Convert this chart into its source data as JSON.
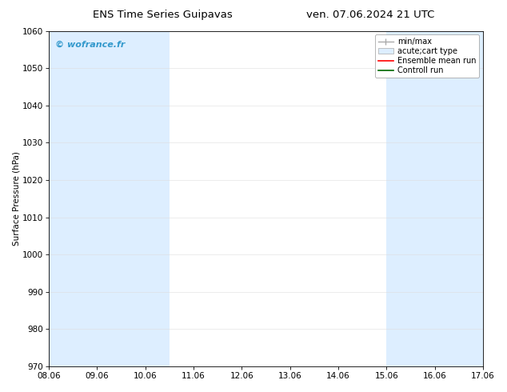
{
  "title_left": "ENS Time Series Guipavas",
  "title_right": "ven. 07.06.2024 21 UTC",
  "ylabel": "Surface Pressure (hPa)",
  "xlabel": "",
  "ylim": [
    970,
    1060
  ],
  "yticks": [
    970,
    980,
    990,
    1000,
    1010,
    1020,
    1030,
    1040,
    1050,
    1060
  ],
  "xtick_labels": [
    "08.06",
    "09.06",
    "10.06",
    "11.06",
    "12.06",
    "13.06",
    "14.06",
    "15.06",
    "16.06",
    "17.06"
  ],
  "xtick_positions": [
    0,
    1,
    2,
    3,
    4,
    5,
    6,
    7,
    8,
    9
  ],
  "xlim": [
    0,
    9
  ],
  "watermark": "© wofrance.fr",
  "watermark_color": "#3399cc",
  "background_color": "#ffffff",
  "plot_background": "#ffffff",
  "shaded_bands": [
    {
      "xmin": 0.0,
      "xmax": 0.5,
      "color": "#ddeeff"
    },
    {
      "xmin": 0.5,
      "xmax": 2.5,
      "color": "#ddeeff"
    },
    {
      "xmin": 7.0,
      "xmax": 9.0,
      "color": "#ddeeff"
    }
  ],
  "legend_entries": [
    {
      "label": "min/max",
      "color": "#aaaaaa",
      "type": "errorbar"
    },
    {
      "label": "acute;cart type",
      "color": "#aaaaaa",
      "type": "fill"
    },
    {
      "label": "Ensemble mean run",
      "color": "#ff0000",
      "type": "line"
    },
    {
      "label": "Controll run",
      "color": "#006600",
      "type": "line"
    }
  ],
  "grid_color": "#dddddd",
  "tick_color": "#000000",
  "font_size": 7.5,
  "title_font_size": 9.5
}
